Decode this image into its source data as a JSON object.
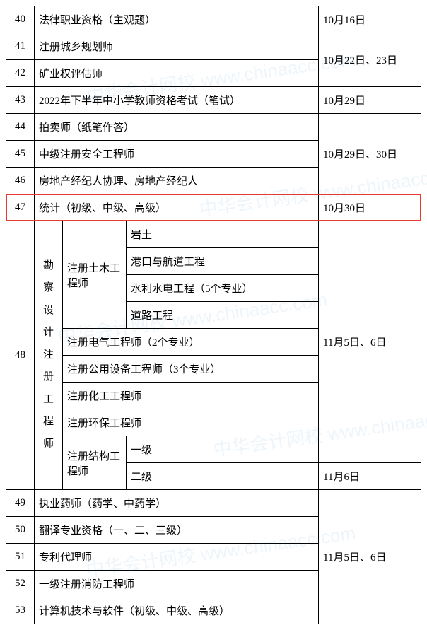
{
  "highlight_color": "#e63a2e",
  "watermark": "中华会计网校 www.chinaacc.com",
  "col_widths": {
    "num": 40,
    "date": 145
  },
  "rows": {
    "r40": {
      "n": "40",
      "name": "法律职业资格（主观题）",
      "date": "10月16日"
    },
    "r41": {
      "n": "41",
      "name": "注册城乡规划师"
    },
    "r42": {
      "n": "42",
      "name": "矿业权评估师",
      "date": "10月22日、23日"
    },
    "r43": {
      "n": "43",
      "name": "2022年下半年中小学教师资格考试（笔试）",
      "date": "10月29日"
    },
    "r44": {
      "n": "44",
      "name": "拍卖师（纸笔作答）"
    },
    "r45": {
      "n": "45",
      "name": "中级注册安全工程师",
      "date": "10月29日、30日"
    },
    "r46": {
      "n": "46",
      "name": "房地产经纪人协理、房地产经纪人"
    },
    "r47": {
      "n": "47",
      "name": "统计（初级、中级、高级）",
      "date": "10月30日"
    },
    "r48": {
      "n": "48",
      "group": "勘察设计注册工程师",
      "civil": "注册土木工程师",
      "civil_items": {
        "a": "岩土",
        "b": "港口与航道工程",
        "c": "水利水电工程（5个专业）",
        "d": "道路工程"
      },
      "elec": "注册电气工程师（2个专业）",
      "pub": "注册公用设备工程师（3个专业）",
      "chem": "注册化工工程师",
      "env": "注册环保工程师",
      "struct": "注册结构工程师",
      "struct_items": {
        "l1": "一级",
        "l2": "二级"
      },
      "date1": "11月5日、6日",
      "date2": "11月6日"
    },
    "r49": {
      "n": "49",
      "name": "执业药师（药学、中药学）"
    },
    "r50": {
      "n": "50",
      "name": "翻译专业资格（一、二、三级）"
    },
    "r51": {
      "n": "51",
      "name": "专利代理师",
      "date": "11月5日、6日"
    },
    "r52": {
      "n": "52",
      "name": "一级注册消防工程师"
    },
    "r53": {
      "n": "53",
      "name": "计算机技术与软件（初级、中级、高级）"
    }
  }
}
